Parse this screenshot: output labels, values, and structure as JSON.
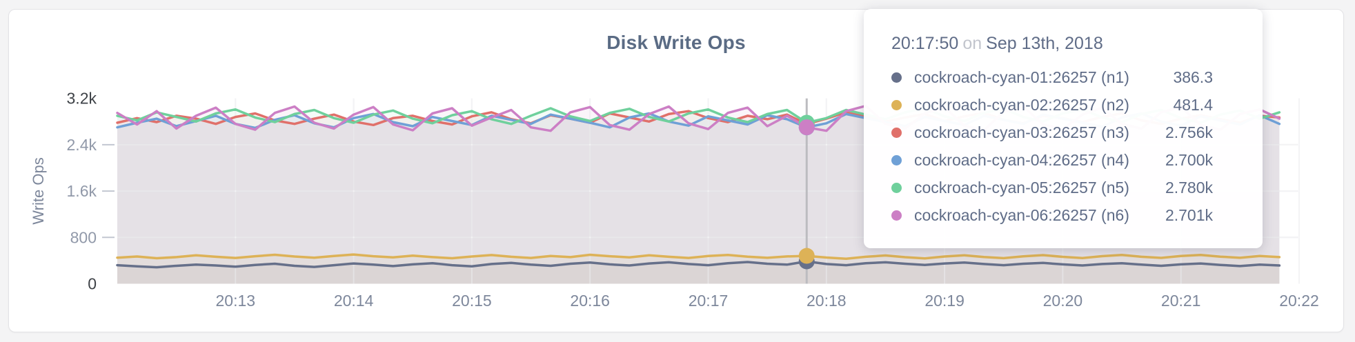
{
  "chart_data": {
    "type": "line",
    "title": "Disk Write Ops",
    "ylabel": "Write Ops",
    "ylim": [
      0,
      3200
    ],
    "grid": true,
    "legend_position": "tooltip-overlay",
    "x_start_time": "20:12:00",
    "x_end_time": "20:22:00",
    "point_interval_seconds": 10,
    "y_ticks": [
      {
        "label": "3.2k",
        "value": 3200,
        "color": "#3e4247"
      },
      {
        "label": "2.4k",
        "value": 2400,
        "color": "#9199a9"
      },
      {
        "label": "1.6k",
        "value": 1600,
        "color": "#9199a9"
      },
      {
        "label": "800",
        "value": 800,
        "color": "#9199a9"
      },
      {
        "label": "0",
        "value": 0,
        "color": "#3e4247"
      }
    ],
    "x_ticks": [
      {
        "label": "20:13",
        "seconds": 60
      },
      {
        "label": "20:14",
        "seconds": 120
      },
      {
        "label": "20:15",
        "seconds": 180
      },
      {
        "label": "20:16",
        "seconds": 240
      },
      {
        "label": "20:17",
        "seconds": 300
      },
      {
        "label": "20:18",
        "seconds": 360
      },
      {
        "label": "20:19",
        "seconds": 420
      },
      {
        "label": "20:20",
        "seconds": 480
      },
      {
        "label": "20:21",
        "seconds": 540
      },
      {
        "label": "20:22",
        "seconds": 600
      }
    ],
    "hover": {
      "index": 35,
      "seconds": 350
    },
    "series": [
      {
        "name": "cockroach-cyan-01:26257 (n1)",
        "color": "#66708a",
        "values": [
          320,
          300,
          285,
          310,
          330,
          315,
          295,
          325,
          345,
          310,
          290,
          320,
          350,
          330,
          305,
          335,
          355,
          320,
          300,
          340,
          360,
          330,
          310,
          345,
          365,
          335,
          315,
          350,
          370,
          340,
          320,
          355,
          375,
          345,
          330,
          386.3,
          340,
          320,
          355,
          370,
          345,
          325,
          350,
          365,
          340,
          320,
          345,
          360,
          335,
          315,
          340,
          355,
          330,
          310,
          335,
          350,
          325,
          305,
          330,
          315
        ]
      },
      {
        "name": "cockroach-cyan-02:26257 (n2)",
        "color": "#ddb257",
        "values": [
          450,
          470,
          440,
          460,
          490,
          465,
          445,
          475,
          500,
          470,
          450,
          480,
          505,
          475,
          455,
          485,
          460,
          440,
          470,
          495,
          465,
          445,
          480,
          460,
          500,
          475,
          455,
          490,
          465,
          445,
          478,
          498,
          468,
          448,
          472,
          481.4,
          452,
          432,
          466,
          488,
          458,
          438,
          470,
          492,
          462,
          442,
          474,
          494,
          464,
          444,
          476,
          496,
          466,
          446,
          478,
          498,
          468,
          448,
          480,
          460
        ]
      },
      {
        "name": "cockroach-cyan-03:26257 (n3)",
        "color": "#e0706a",
        "values": [
          2780,
          2860,
          2790,
          2900,
          2850,
          2760,
          2880,
          2940,
          2820,
          2760,
          2850,
          2920,
          2800,
          2740,
          2860,
          2900,
          2810,
          2750,
          2890,
          2960,
          2840,
          2770,
          2910,
          2850,
          2780,
          2940,
          2870,
          2800,
          2930,
          2980,
          2860,
          2790,
          2900,
          2840,
          2920,
          2756,
          2850,
          2960,
          2880,
          2800,
          2870,
          2930,
          2810,
          2890,
          2950,
          2830,
          2770,
          2900,
          2860,
          2790,
          2880,
          2940,
          2820,
          2760,
          2850,
          2910,
          2840,
          2780,
          2900,
          2870
        ]
      },
      {
        "name": "cockroach-cyan-04:26257 (n4)",
        "color": "#6fa0d6",
        "values": [
          2700,
          2780,
          2850,
          2720,
          2810,
          2900,
          2760,
          2690,
          2830,
          2910,
          2770,
          2700,
          2860,
          2930,
          2790,
          2720,
          2880,
          2810,
          2740,
          2900,
          2830,
          2760,
          2920,
          2850,
          2780,
          2700,
          2870,
          2940,
          2800,
          2730,
          2890,
          2820,
          2750,
          2910,
          2840,
          2700,
          2770,
          2930,
          2860,
          2790,
          2720,
          2880,
          2810,
          2740,
          2900,
          2830,
          2760,
          2920,
          2850,
          2780,
          2710,
          2870,
          2940,
          2800,
          2730,
          2890,
          2820,
          2750,
          2910,
          2760
        ]
      },
      {
        "name": "cockroach-cyan-05:26257 (n5)",
        "color": "#6fd09c",
        "values": [
          2900,
          2820,
          2960,
          2880,
          2800,
          2940,
          3010,
          2870,
          2790,
          2930,
          3000,
          2860,
          2780,
          2920,
          2990,
          2850,
          2770,
          2910,
          2980,
          2840,
          2760,
          2900,
          3030,
          2890,
          2810,
          2950,
          3020,
          2880,
          2800,
          2940,
          3010,
          2870,
          2790,
          2930,
          3000,
          2780,
          2860,
          3000,
          2920,
          2840,
          2960,
          3030,
          2890,
          2810,
          2950,
          3020,
          2880,
          2800,
          2940,
          3010,
          2870,
          2790,
          2930,
          3000,
          2860,
          2780,
          2920,
          2990,
          2850,
          2960
        ]
      },
      {
        "name": "cockroach-cyan-06:26257 (n6)",
        "color": "#cc7fc5",
        "values": [
          2950,
          2750,
          2980,
          2680,
          2900,
          3040,
          2760,
          2660,
          2950,
          3060,
          2780,
          2680,
          2920,
          3050,
          2750,
          2650,
          2940,
          3030,
          2730,
          2870,
          3000,
          2700,
          2640,
          2960,
          3050,
          2740,
          2660,
          2930,
          3060,
          2770,
          2670,
          2950,
          3040,
          2720,
          2900,
          2701,
          2640,
          2980,
          3070,
          2760,
          2680,
          2940,
          3050,
          2730,
          2650,
          2970,
          3060,
          2750,
          2670,
          2920,
          3040,
          2760,
          2680,
          2960,
          3050,
          2740,
          2660,
          2930,
          3010,
          2850
        ]
      }
    ]
  },
  "tooltip": {
    "time": "20:17:50",
    "conjunction": "on",
    "date": "Sep 13th, 2018",
    "rows": [
      {
        "value": "386.3"
      },
      {
        "value": "481.4"
      },
      {
        "value": "2.756k"
      },
      {
        "value": "2.700k"
      },
      {
        "value": "2.780k"
      },
      {
        "value": "2.701k"
      }
    ]
  },
  "colors": {
    "title": "#5a6b84",
    "axis_label": "#7d879b",
    "x_tick": "#7d879b",
    "hover_line": "#bcbcc0",
    "grid_under": "#e7e7ea",
    "grid_over": "rgba(255,255,255,0.5)"
  }
}
